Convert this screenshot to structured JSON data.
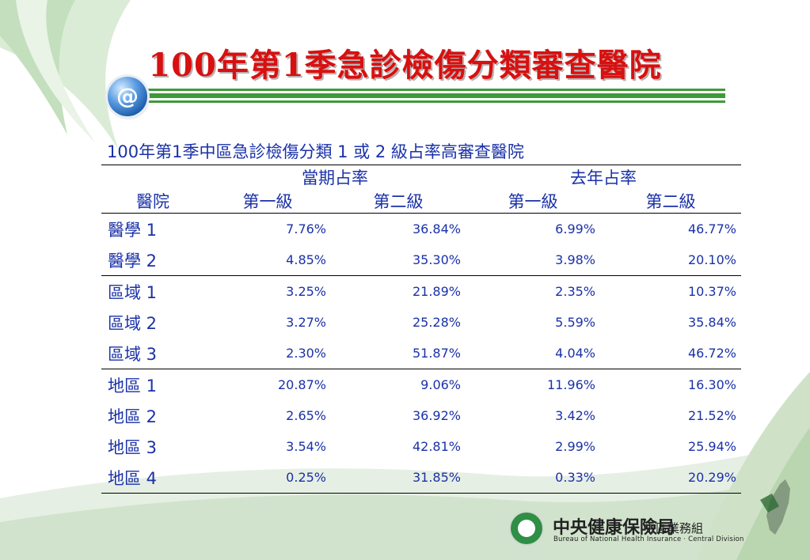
{
  "slide": {
    "title": "100年第1季急診檢傷分類審查醫院"
  },
  "badge": {
    "symbol": "@"
  },
  "table": {
    "caption": "100年第1季中區急診檢傷分類 1 或 2 級占率高審查醫院",
    "group_headers": [
      "當期占率",
      "去年占率"
    ],
    "columns": [
      "醫院",
      "第一級",
      "第二級",
      "第一級",
      "第二級"
    ],
    "rows": [
      {
        "hospital": "醫學 1",
        "cur_l1": "7.76%",
        "cur_l2": "36.84%",
        "prev_l1": "6.99%",
        "prev_l2": "46.77%"
      },
      {
        "hospital": "醫學 2",
        "cur_l1": "4.85%",
        "cur_l2": "35.30%",
        "prev_l1": "3.98%",
        "prev_l2": "20.10%"
      },
      {
        "hospital": "區域 1",
        "cur_l1": "3.25%",
        "cur_l2": "21.89%",
        "prev_l1": "2.35%",
        "prev_l2": "10.37%"
      },
      {
        "hospital": "區域 2",
        "cur_l1": "3.27%",
        "cur_l2": "25.28%",
        "prev_l1": "5.59%",
        "prev_l2": "35.84%"
      },
      {
        "hospital": "區域 3",
        "cur_l1": "2.30%",
        "cur_l2": "51.87%",
        "prev_l1": "4.04%",
        "prev_l2": "46.72%"
      },
      {
        "hospital": "地區 1",
        "cur_l1": "20.87%",
        "cur_l2": "9.06%",
        "prev_l1": "11.96%",
        "prev_l2": "16.30%"
      },
      {
        "hospital": "地區 2",
        "cur_l1": "2.65%",
        "cur_l2": "36.92%",
        "prev_l1": "3.42%",
        "prev_l2": "21.52%"
      },
      {
        "hospital": "地區 3",
        "cur_l1": "3.54%",
        "cur_l2": "42.81%",
        "prev_l1": "2.99%",
        "prev_l2": "25.94%"
      },
      {
        "hospital": "地區 4",
        "cur_l1": "0.25%",
        "cur_l2": "31.85%",
        "prev_l1": "0.33%",
        "prev_l2": "20.29%"
      }
    ]
  },
  "logo": {
    "main": "中央健康保險局",
    "division": "中區業務組",
    "english": "Bureau of National Health Insurance · Central Division"
  },
  "colors": {
    "title": "#d81010",
    "table_text": "#1a31a8",
    "accent_green": "#3f9a3a"
  }
}
